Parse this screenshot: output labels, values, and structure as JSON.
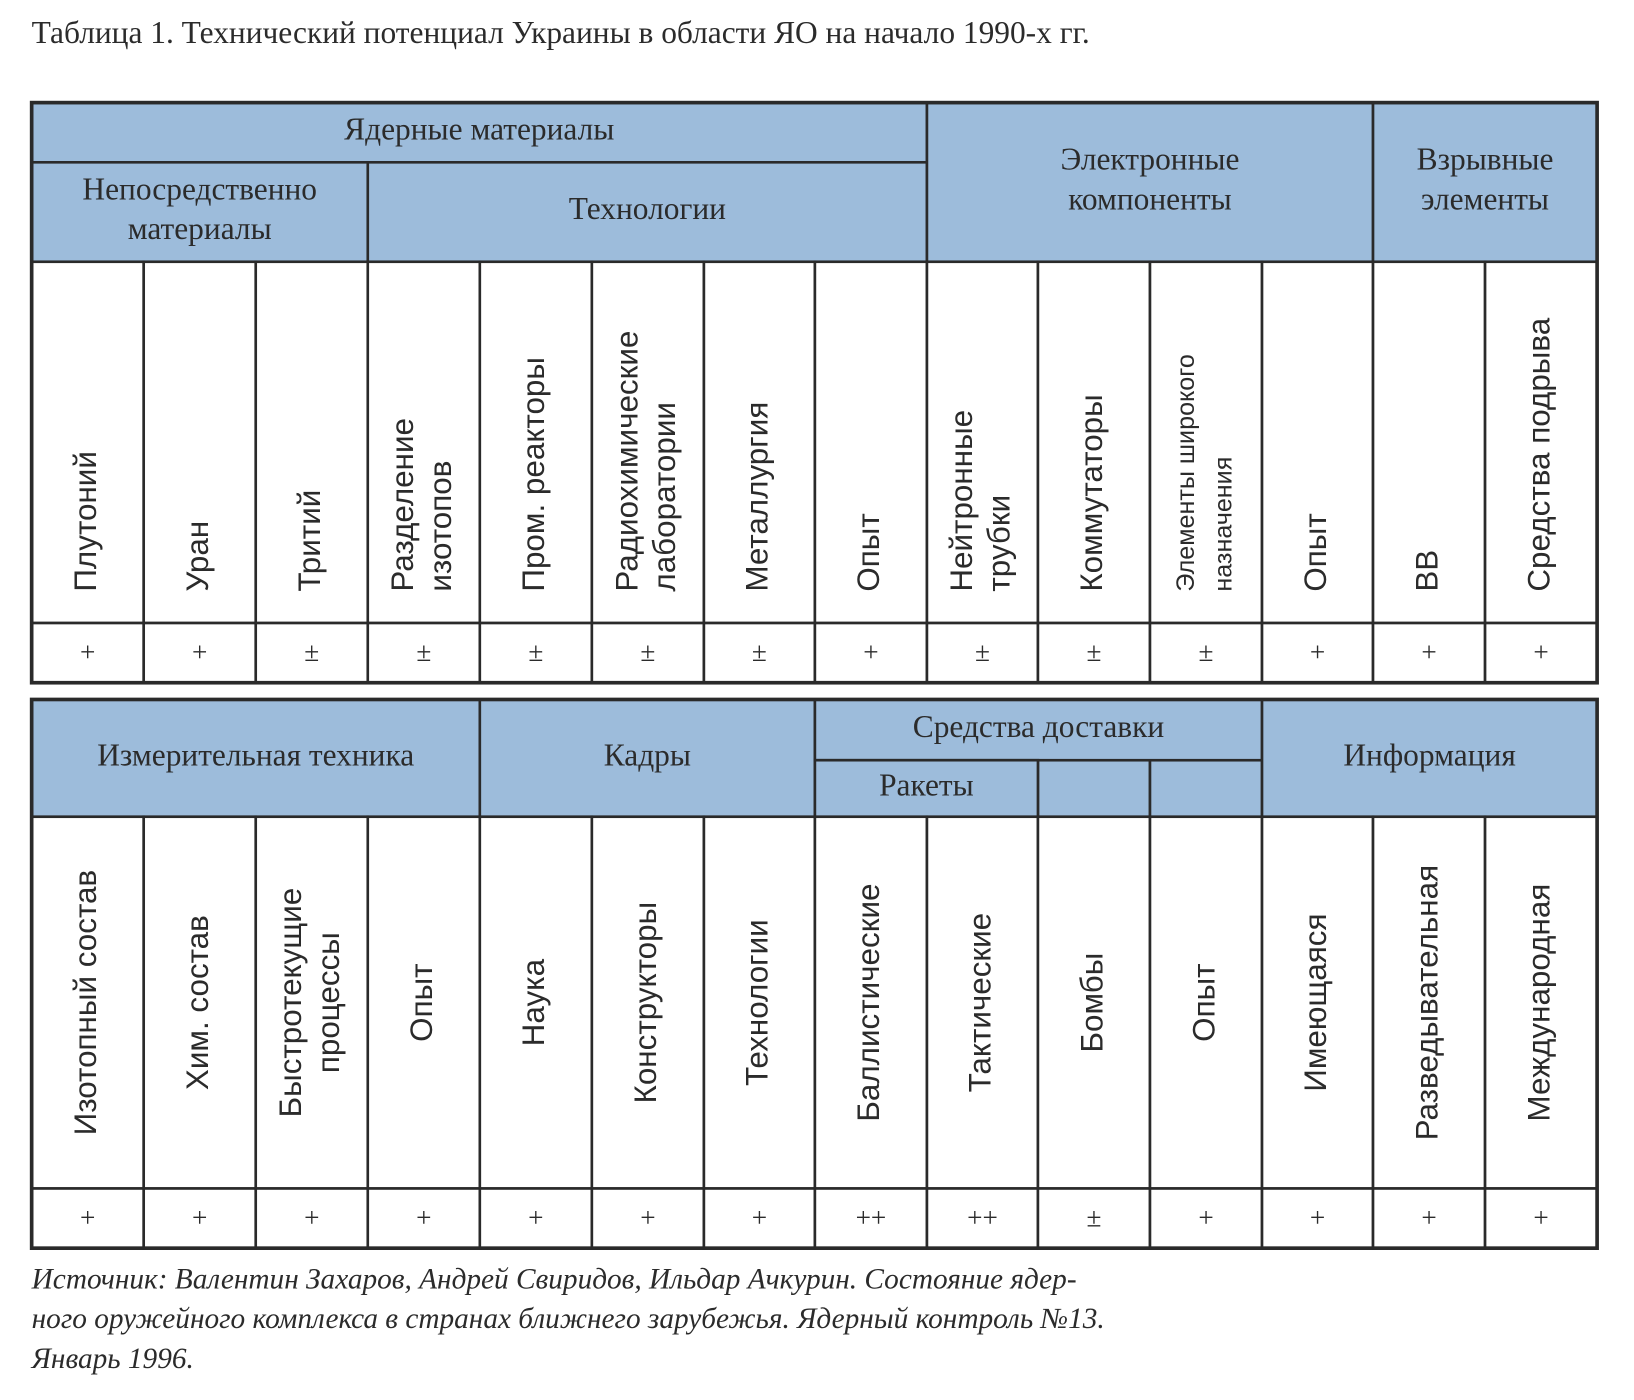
{
  "title": "Таблица 1. Технический потенциал Украины в области ЯО на начало 1990-х гг.",
  "table1": {
    "header": [
      [
        "Ядерные материалы"
      ],
      [
        "Непосредственно",
        "материалы"
      ],
      [
        "Технологии"
      ],
      [
        "Электронные",
        "компоненты"
      ],
      [
        "Взрывные",
        "элементы"
      ]
    ],
    "columns": [
      [
        "Плутоний"
      ],
      [
        "Уран"
      ],
      [
        "Тритий"
      ],
      [
        "Разделение",
        "изотопов"
      ],
      [
        "Пром. реакторы"
      ],
      [
        "Радиохимические",
        "лаборатории"
      ],
      [
        "Металлургия"
      ],
      [
        "Опыт"
      ],
      [
        "Нейтронные",
        "трубки"
      ],
      [
        "Коммутаторы"
      ],
      [
        "Элементы широкого",
        "назначения"
      ],
      [
        "Опыт"
      ],
      [
        "ВВ"
      ],
      [
        "Средства подрыва"
      ]
    ],
    "values": [
      "+",
      "+",
      "±",
      "±",
      "±",
      "±",
      "±",
      "+",
      "±",
      "±",
      "±",
      "+",
      "+",
      "+"
    ]
  },
  "table2": {
    "header": [
      [
        "Измерительная техника"
      ],
      [
        "Кадры"
      ],
      [
        "Средства доставки"
      ],
      [
        "Ракеты"
      ],
      [
        "Информация"
      ]
    ],
    "columns": [
      [
        "Изотопный состав"
      ],
      [
        "Хим. состав"
      ],
      [
        "Быстротекущие",
        "процессы"
      ],
      [
        "Опыт"
      ],
      [
        "Наука"
      ],
      [
        "Конструкторы"
      ],
      [
        "Технологии"
      ],
      [
        "Баллистические"
      ],
      [
        "Тактические"
      ],
      [
        "Бомбы"
      ],
      [
        "Опыт"
      ],
      [
        "Имеющаяся"
      ],
      [
        "Разведывательная"
      ],
      [
        "Международная"
      ]
    ],
    "values": [
      "+",
      "+",
      "+",
      "+",
      "+",
      "+",
      "+",
      "++",
      "++",
      "±",
      "+",
      "+",
      "+",
      "+"
    ]
  },
  "source": [
    "Источник: Валентин Захаров, Андрей Свиридов, Ильдар Ачкурин. Состояние ядер-",
    "ного оружейного комплекса в странах ближнего зарубежья. Ядерный контроль №13.",
    "Январь 1996."
  ]
}
